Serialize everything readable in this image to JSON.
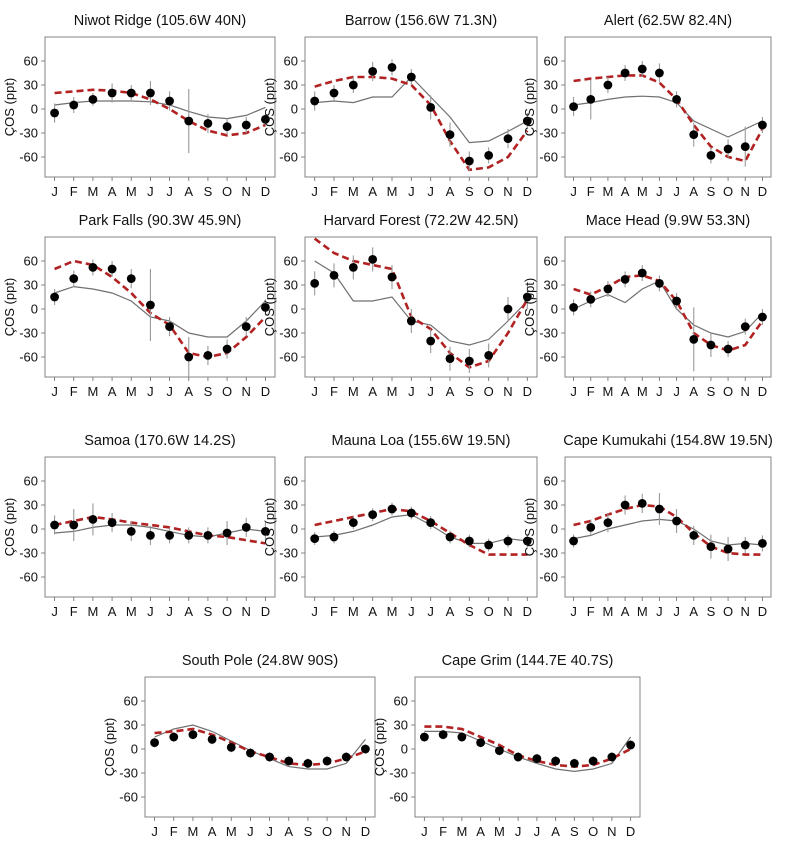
{
  "figure": {
    "months": [
      "J",
      "F",
      "M",
      "A",
      "M",
      "J",
      "J",
      "A",
      "S",
      "O",
      "N",
      "D"
    ],
    "ylabel": "ÇOS (ppt)",
    "y_ticks": [
      60,
      30,
      0,
      -30,
      -60
    ],
    "colors": {
      "observed": "#000000",
      "model_dashed": "#b22222",
      "model_solid": "#707070"
    }
  },
  "chart_data": [
    {
      "type": "line",
      "title": "Niwot Ridge (105.6W 40N)",
      "xlabel": "",
      "ylabel": "ÇOS (ppt)",
      "ylim": [
        -85,
        90
      ],
      "x": [
        "J",
        "F",
        "M",
        "A",
        "M",
        "J",
        "J",
        "A",
        "S",
        "O",
        "N",
        "D"
      ],
      "series": [
        {
          "style": "observed points with error bars",
          "values": [
            -5,
            5,
            12,
            20,
            20,
            20,
            10,
            -15,
            -18,
            -22,
            -20,
            -13
          ],
          "errors": [
            12,
            10,
            8,
            12,
            10,
            15,
            12,
            40,
            12,
            10,
            10,
            8
          ]
        },
        {
          "style": "dashed model",
          "values": [
            20,
            22,
            24,
            23,
            20,
            12,
            0,
            -15,
            -27,
            -33,
            -30,
            -20
          ]
        },
        {
          "style": "solid model",
          "values": [
            5,
            8,
            10,
            10,
            10,
            9,
            5,
            -3,
            -10,
            -12,
            -8,
            2
          ]
        }
      ]
    },
    {
      "type": "line",
      "title": "Barrow (156.6W 71.3N)",
      "xlabel": "",
      "ylabel": "ÇOS (ppt)",
      "ylim": [
        -85,
        90
      ],
      "x": [
        "J",
        "F",
        "M",
        "A",
        "M",
        "J",
        "J",
        "A",
        "S",
        "O",
        "N",
        "D"
      ],
      "series": [
        {
          "style": "observed points with error bars",
          "values": [
            10,
            20,
            30,
            47,
            52,
            40,
            2,
            -32,
            -65,
            -58,
            -37,
            -15
          ],
          "errors": [
            12,
            10,
            10,
            12,
            10,
            10,
            15,
            15,
            12,
            10,
            12,
            10
          ]
        },
        {
          "style": "dashed model",
          "values": [
            28,
            35,
            40,
            40,
            38,
            30,
            5,
            -40,
            -76,
            -73,
            -60,
            -27
          ]
        },
        {
          "style": "solid model",
          "values": [
            8,
            10,
            8,
            15,
            15,
            40,
            15,
            -10,
            -42,
            -40,
            -28,
            -15
          ]
        }
      ]
    },
    {
      "type": "line",
      "title": "Alert (62.5W 82.4N)",
      "xlabel": "",
      "ylabel": "ÇOS (ppt)",
      "ylim": [
        -85,
        90
      ],
      "x": [
        "J",
        "F",
        "M",
        "A",
        "M",
        "J",
        "J",
        "A",
        "S",
        "O",
        "N",
        "D"
      ],
      "series": [
        {
          "style": "observed points with error bars",
          "values": [
            3,
            12,
            30,
            45,
            50,
            45,
            12,
            -32,
            -58,
            -50,
            -47,
            -20
          ],
          "errors": [
            12,
            25,
            10,
            10,
            10,
            12,
            10,
            15,
            10,
            12,
            25,
            10
          ]
        },
        {
          "style": "dashed model",
          "values": [
            35,
            38,
            40,
            42,
            42,
            33,
            12,
            -20,
            -47,
            -60,
            -65,
            -25
          ]
        },
        {
          "style": "solid model",
          "values": [
            5,
            8,
            12,
            15,
            16,
            15,
            8,
            -15,
            -25,
            -35,
            -25,
            -15
          ]
        }
      ]
    },
    {
      "type": "line",
      "title": "Park Falls (90.3W 45.9N)",
      "xlabel": "",
      "ylabel": "ÇOS (ppt)",
      "ylim": [
        -85,
        90
      ],
      "x": [
        "J",
        "F",
        "M",
        "A",
        "M",
        "J",
        "J",
        "A",
        "S",
        "O",
        "N",
        "D"
      ],
      "series": [
        {
          "style": "observed points with error bars",
          "values": [
            15,
            38,
            52,
            50,
            38,
            5,
            -22,
            -60,
            -58,
            -50,
            -22,
            2
          ],
          "errors": [
            10,
            10,
            10,
            10,
            12,
            45,
            12,
            25,
            12,
            12,
            12,
            10
          ]
        },
        {
          "style": "dashed model",
          "values": [
            50,
            60,
            55,
            40,
            20,
            -5,
            -20,
            -55,
            -60,
            -55,
            -35,
            -10
          ]
        },
        {
          "style": "solid model",
          "values": [
            20,
            28,
            25,
            20,
            10,
            -10,
            -15,
            -30,
            -35,
            -35,
            -15,
            10
          ]
        }
      ]
    },
    {
      "type": "line",
      "title": "Harvard Forest (72.2W 42.5N)",
      "xlabel": "",
      "ylabel": "ÇOS (ppt)",
      "ylim": [
        -85,
        90
      ],
      "x": [
        "J",
        "F",
        "M",
        "A",
        "M",
        "J",
        "J",
        "A",
        "S",
        "O",
        "N",
        "D"
      ],
      "series": [
        {
          "style": "observed points with error bars",
          "values": [
            32,
            42,
            52,
            62,
            40,
            -15,
            -40,
            -62,
            -65,
            -58,
            0,
            15
          ],
          "errors": [
            15,
            15,
            15,
            15,
            15,
            15,
            15,
            15,
            15,
            15,
            15,
            15
          ]
        },
        {
          "style": "dashed model",
          "values": [
            88,
            70,
            60,
            55,
            50,
            -10,
            -25,
            -55,
            -73,
            -65,
            -30,
            12
          ]
        },
        {
          "style": "solid model",
          "values": [
            60,
            45,
            10,
            10,
            15,
            -15,
            -20,
            -40,
            -45,
            -38,
            -15,
            10
          ]
        }
      ]
    },
    {
      "type": "line",
      "title": "Mace Head (9.9W 53.3N)",
      "xlabel": "",
      "ylabel": "ÇOS (ppt)",
      "ylim": [
        -85,
        90
      ],
      "x": [
        "J",
        "F",
        "M",
        "A",
        "M",
        "J",
        "J",
        "A",
        "S",
        "O",
        "N",
        "D"
      ],
      "series": [
        {
          "style": "observed points with error bars",
          "values": [
            2,
            12,
            25,
            37,
            45,
            32,
            10,
            -38,
            -45,
            -50,
            -22,
            -10
          ],
          "errors": [
            10,
            10,
            10,
            10,
            10,
            10,
            10,
            40,
            15,
            10,
            10,
            10
          ]
        },
        {
          "style": "dashed model",
          "values": [
            25,
            18,
            28,
            40,
            42,
            35,
            10,
            -30,
            -45,
            -52,
            -45,
            -15
          ]
        },
        {
          "style": "solid model",
          "values": [
            0,
            10,
            18,
            8,
            25,
            35,
            0,
            -20,
            -30,
            -35,
            -28,
            -5
          ]
        }
      ]
    },
    {
      "type": "line",
      "title": "Samoa (170.6W 14.2S)",
      "xlabel": "",
      "ylabel": "ÇOS (ppt)",
      "ylim": [
        -85,
        90
      ],
      "x": [
        "J",
        "F",
        "M",
        "A",
        "M",
        "J",
        "J",
        "A",
        "S",
        "O",
        "N",
        "D"
      ],
      "series": [
        {
          "style": "observed points with error bars",
          "values": [
            5,
            5,
            12,
            8,
            -3,
            -8,
            -8,
            -8,
            -8,
            -5,
            2,
            -3
          ],
          "errors": [
            12,
            20,
            20,
            12,
            12,
            12,
            10,
            10,
            10,
            15,
            12,
            12
          ]
        },
        {
          "style": "dashed model",
          "values": [
            5,
            10,
            15,
            12,
            8,
            5,
            2,
            -3,
            -8,
            -10,
            -14,
            -18
          ]
        },
        {
          "style": "solid model",
          "values": [
            -5,
            -3,
            2,
            5,
            5,
            2,
            -3,
            -8,
            -10,
            -5,
            0,
            -3
          ]
        }
      ]
    },
    {
      "type": "line",
      "title": "Mauna Loa (155.6W 19.5N)",
      "xlabel": "",
      "ylabel": "ÇOS (ppt)",
      "ylim": [
        -85,
        90
      ],
      "x": [
        "J",
        "F",
        "M",
        "A",
        "M",
        "J",
        "J",
        "A",
        "S",
        "O",
        "N",
        "D"
      ],
      "series": [
        {
          "style": "observed points with error bars",
          "values": [
            -12,
            -10,
            8,
            18,
            25,
            20,
            8,
            -10,
            -15,
            -20,
            -15,
            -15
          ],
          "errors": [
            8,
            8,
            8,
            8,
            8,
            8,
            8,
            8,
            8,
            8,
            8,
            8
          ]
        },
        {
          "style": "dashed model",
          "values": [
            5,
            10,
            15,
            20,
            25,
            22,
            10,
            -5,
            -20,
            -32,
            -32,
            -32
          ]
        },
        {
          "style": "solid model",
          "values": [
            -10,
            -8,
            -3,
            5,
            15,
            18,
            5,
            -10,
            -18,
            -18,
            -12,
            -15
          ]
        }
      ]
    },
    {
      "type": "line",
      "title": "Cape Kumukahi (154.8W 19.5N)",
      "xlabel": "",
      "ylabel": "ÇOS (ppt)",
      "ylim": [
        -85,
        90
      ],
      "x": [
        "J",
        "F",
        "M",
        "A",
        "M",
        "J",
        "J",
        "A",
        "S",
        "O",
        "N",
        "D"
      ],
      "series": [
        {
          "style": "observed points with error bars",
          "values": [
            -15,
            2,
            8,
            30,
            32,
            25,
            10,
            -8,
            -22,
            -25,
            -20,
            -18
          ],
          "errors": [
            8,
            10,
            12,
            12,
            12,
            20,
            15,
            12,
            15,
            15,
            10,
            10
          ]
        },
        {
          "style": "dashed model",
          "values": [
            5,
            10,
            18,
            25,
            30,
            28,
            15,
            -5,
            -22,
            -30,
            -32,
            -32
          ]
        },
        {
          "style": "solid model",
          "values": [
            -12,
            -8,
            0,
            5,
            10,
            12,
            10,
            0,
            -15,
            -20,
            -18,
            -20
          ]
        }
      ]
    },
    {
      "type": "line",
      "title": "South Pole (24.8W 90S)",
      "xlabel": "",
      "ylabel": "ÇOS (ppt)",
      "ylim": [
        -85,
        90
      ],
      "x": [
        "J",
        "F",
        "M",
        "A",
        "M",
        "J",
        "J",
        "A",
        "S",
        "O",
        "N",
        "D"
      ],
      "series": [
        {
          "style": "observed points with error bars",
          "values": [
            8,
            15,
            18,
            12,
            2,
            -5,
            -10,
            -15,
            -18,
            -15,
            -10,
            0
          ],
          "errors": [
            6,
            6,
            6,
            6,
            6,
            6,
            6,
            6,
            6,
            6,
            6,
            6
          ]
        },
        {
          "style": "dashed model",
          "values": [
            20,
            22,
            25,
            18,
            8,
            -3,
            -10,
            -18,
            -20,
            -18,
            -12,
            -3
          ]
        },
        {
          "style": "solid model",
          "values": [
            15,
            25,
            30,
            22,
            10,
            -2,
            -12,
            -22,
            -25,
            -25,
            -18,
            12
          ]
        }
      ]
    },
    {
      "type": "line",
      "title": "Cape Grim (144.7E 40.7S)",
      "xlabel": "",
      "ylabel": "ÇOS (ppt)",
      "ylim": [
        -85,
        90
      ],
      "x": [
        "J",
        "F",
        "M",
        "A",
        "M",
        "J",
        "J",
        "A",
        "S",
        "O",
        "N",
        "D"
      ],
      "series": [
        {
          "style": "observed points with error bars",
          "values": [
            15,
            18,
            15,
            8,
            -2,
            -10,
            -12,
            -15,
            -18,
            -15,
            -10,
            5
          ],
          "errors": [
            6,
            6,
            6,
            6,
            6,
            6,
            6,
            6,
            6,
            6,
            6,
            6
          ]
        },
        {
          "style": "dashed model",
          "values": [
            28,
            28,
            25,
            15,
            5,
            -8,
            -15,
            -20,
            -22,
            -20,
            -12,
            0
          ]
        },
        {
          "style": "solid model",
          "values": [
            22,
            22,
            20,
            10,
            0,
            -10,
            -18,
            -25,
            -28,
            -25,
            -18,
            15
          ]
        }
      ]
    }
  ]
}
